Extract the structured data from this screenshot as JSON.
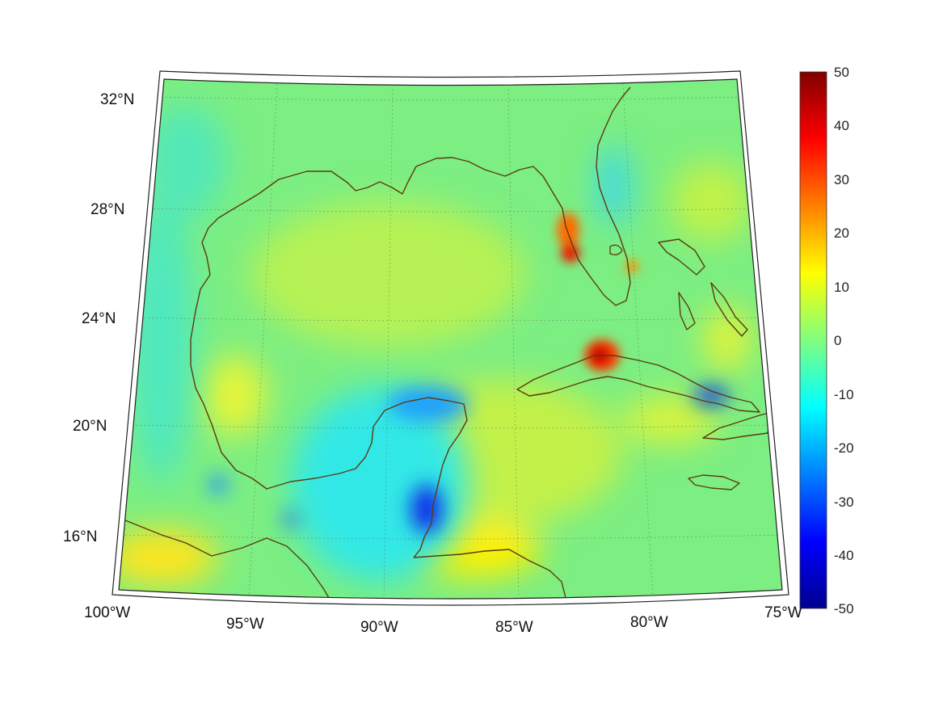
{
  "map": {
    "lon_labels": [
      "100°W",
      "95°W",
      "90°W",
      "85°W",
      "80°W",
      "75°W"
    ],
    "lat_labels": [
      "32°N",
      "28°N",
      "24°N",
      "20°N",
      "16°N"
    ]
  },
  "colorbar": {
    "ticks": [
      "50",
      "40",
      "30",
      "20",
      "10",
      "0",
      "-10",
      "-20",
      "-30",
      "-40",
      "-50"
    ],
    "min": -50,
    "max": 50,
    "colormap": "jet"
  },
  "colors": {
    "coastline": "#5c3a12",
    "background_field": "#7ef07a"
  }
}
